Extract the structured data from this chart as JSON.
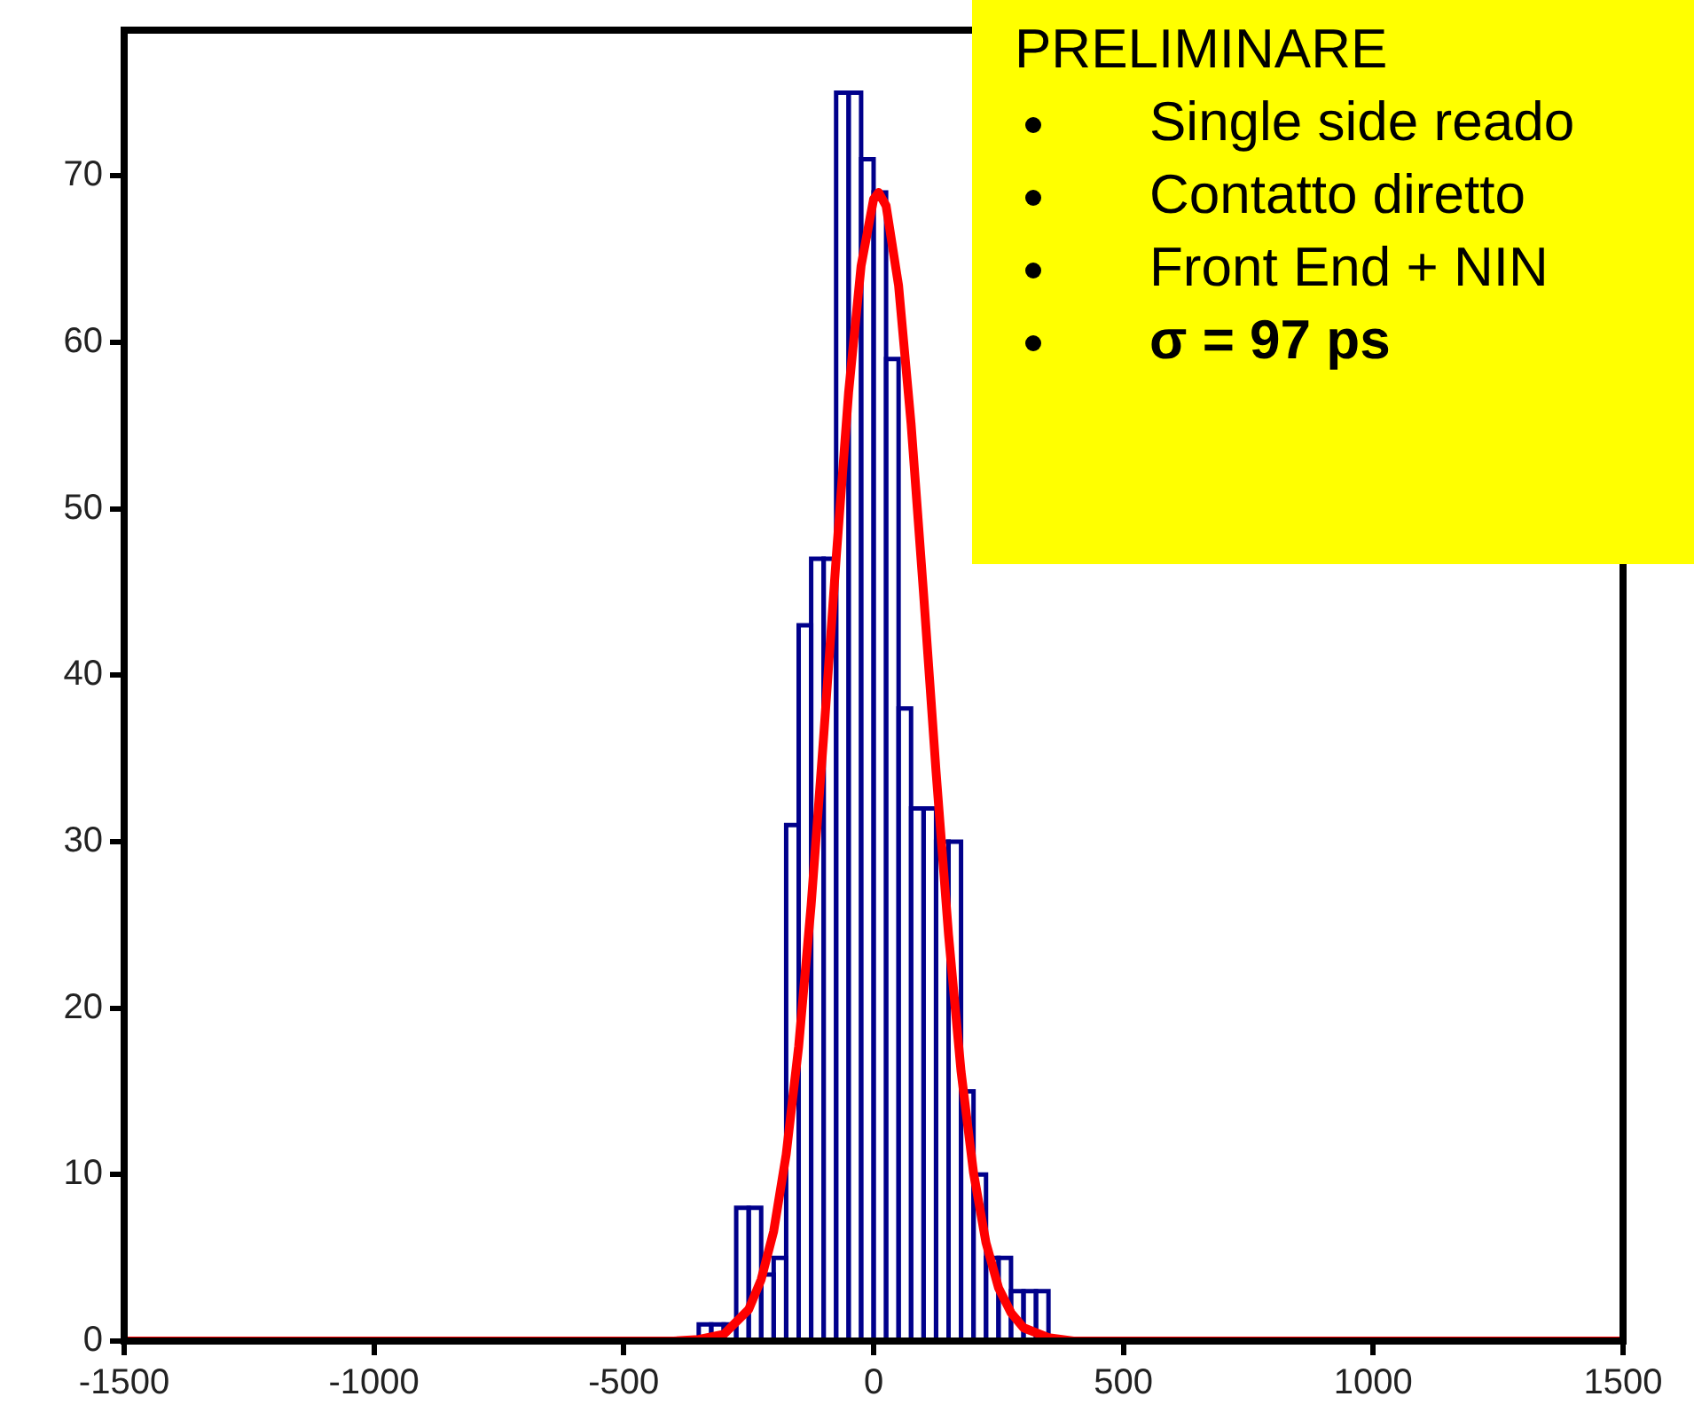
{
  "chart_data": {
    "type": "histogram",
    "color": "#00008b",
    "marker": "none",
    "bins": [
      -350,
      -325,
      -300,
      -275,
      -250,
      -225,
      -200,
      -175,
      -150,
      -125,
      -100,
      -75,
      -50,
      -25,
      0,
      25,
      50,
      75,
      100,
      125,
      150,
      175,
      200,
      225,
      250,
      275,
      300,
      325,
      350
    ],
    "values": [
      1,
      1,
      1,
      8,
      8,
      4,
      5,
      31,
      43,
      47,
      47,
      75,
      75,
      71,
      69,
      59,
      38,
      32,
      32,
      30,
      30,
      15,
      10,
      5,
      5,
      3,
      3,
      3
    ],
    "series": [
      {
        "type": "line",
        "color": "#ff0000",
        "x": [
          -1500,
          -400,
          -350,
          -300,
          -250,
          -225,
          -200,
          -175,
          -150,
          -125,
          -100,
          -75,
          -50,
          -25,
          0,
          10,
          25,
          50,
          75,
          100,
          125,
          150,
          175,
          200,
          225,
          250,
          275,
          300,
          350,
          400,
          1500
        ],
        "values": [
          0,
          0,
          0.1,
          0.4,
          1.9,
          3.7,
          6.6,
          11.2,
          17.7,
          26.2,
          36.3,
          47,
          57,
          64.6,
          68.6,
          69,
          68.2,
          63.4,
          55.1,
          44.9,
          34.2,
          24.4,
          16.2,
          10.1,
          5.9,
          3.2,
          1.7,
          0.8,
          0.2,
          0,
          0
        ]
      }
    ],
    "xlim": [
      -1500,
      1500
    ],
    "xticks": [
      -1500,
      -1000,
      -500,
      0,
      500,
      1000,
      1500
    ],
    "ylim": [
      0,
      78.75
    ],
    "yticks": [
      0,
      10,
      20,
      30,
      40,
      50,
      60,
      70
    ],
    "grid": false,
    "legend": false,
    "annotations": [
      "PRELIMINARE",
      "Single side reado",
      "Contatto diretto",
      "Front End + NIN",
      "σ = 97 ps"
    ]
  }
}
